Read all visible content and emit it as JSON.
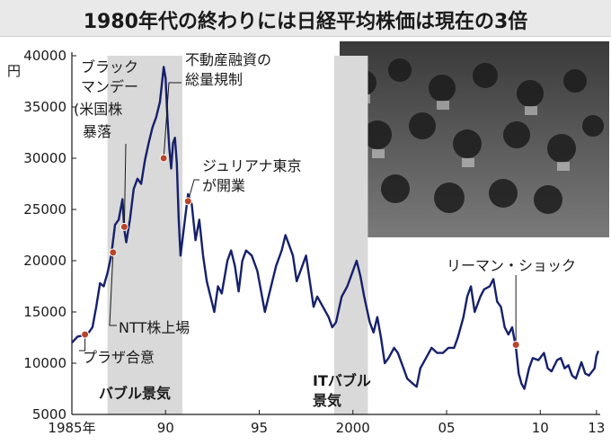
{
  "title": "1980年代の終わりには日経平均株価は現在の3倍",
  "chart_data": {
    "type": "line",
    "ylabel_unit": "円",
    "ylim": [
      5000,
      40000
    ],
    "yticks": [
      5000,
      10000,
      15000,
      20000,
      25000,
      30000,
      35000,
      40000
    ],
    "xlim": [
      1985.0,
      2013.2
    ],
    "xticks": [
      {
        "v": 1985,
        "label": "1985年"
      },
      {
        "v": 1990,
        "label": "90"
      },
      {
        "v": 1995,
        "label": "95"
      },
      {
        "v": 2000,
        "label": "2000"
      },
      {
        "v": 2005,
        "label": "05"
      },
      {
        "v": 2010,
        "label": "10"
      },
      {
        "v": 2013,
        "label": "13"
      }
    ],
    "series": [
      {
        "color": "#16206b",
        "points": [
          [
            1985.0,
            12000
          ],
          [
            1985.3,
            12600
          ],
          [
            1985.6,
            12700
          ],
          [
            1985.9,
            13000
          ],
          [
            1986.1,
            13500
          ],
          [
            1986.3,
            15500
          ],
          [
            1986.5,
            17800
          ],
          [
            1986.7,
            17500
          ],
          [
            1986.9,
            18800
          ],
          [
            1987.1,
            20500
          ],
          [
            1987.3,
            23500
          ],
          [
            1987.5,
            24000
          ],
          [
            1987.7,
            26000
          ],
          [
            1987.8,
            23000
          ],
          [
            1987.9,
            21800
          ],
          [
            1988.1,
            24000
          ],
          [
            1988.3,
            27000
          ],
          [
            1988.5,
            28000
          ],
          [
            1988.7,
            27500
          ],
          [
            1988.9,
            29800
          ],
          [
            1989.1,
            31500
          ],
          [
            1989.3,
            33000
          ],
          [
            1989.5,
            34000
          ],
          [
            1989.7,
            35500
          ],
          [
            1989.9,
            38900
          ],
          [
            1990.0,
            37800
          ],
          [
            1990.1,
            34000
          ],
          [
            1990.2,
            31000
          ],
          [
            1990.3,
            29000
          ],
          [
            1990.4,
            31500
          ],
          [
            1990.5,
            32000
          ],
          [
            1990.6,
            29500
          ],
          [
            1990.7,
            24000
          ],
          [
            1990.8,
            20500
          ],
          [
            1990.9,
            22000
          ],
          [
            1991.0,
            23500
          ],
          [
            1991.2,
            26500
          ],
          [
            1991.4,
            25500
          ],
          [
            1991.6,
            22000
          ],
          [
            1991.8,
            24000
          ],
          [
            1992.0,
            20500
          ],
          [
            1992.2,
            18000
          ],
          [
            1992.4,
            16500
          ],
          [
            1992.6,
            15000
          ],
          [
            1992.8,
            17500
          ],
          [
            1993.0,
            16800
          ],
          [
            1993.3,
            20000
          ],
          [
            1993.5,
            21000
          ],
          [
            1993.7,
            19500
          ],
          [
            1993.9,
            17000
          ],
          [
            1994.1,
            20000
          ],
          [
            1994.3,
            21000
          ],
          [
            1994.6,
            20500
          ],
          [
            1994.9,
            19000
          ],
          [
            1995.1,
            17000
          ],
          [
            1995.3,
            15000
          ],
          [
            1995.5,
            16500
          ],
          [
            1995.7,
            18000
          ],
          [
            1995.9,
            19500
          ],
          [
            1996.2,
            21000
          ],
          [
            1996.4,
            22500
          ],
          [
            1996.6,
            21500
          ],
          [
            1996.8,
            20500
          ],
          [
            1997.0,
            18000
          ],
          [
            1997.3,
            19500
          ],
          [
            1997.5,
            20500
          ],
          [
            1997.7,
            18000
          ],
          [
            1997.9,
            15500
          ],
          [
            1998.1,
            16500
          ],
          [
            1998.4,
            15500
          ],
          [
            1998.7,
            14500
          ],
          [
            1998.9,
            13500
          ],
          [
            1999.1,
            14000
          ],
          [
            1999.4,
            16500
          ],
          [
            1999.7,
            17500
          ],
          [
            1999.9,
            18500
          ],
          [
            2000.2,
            20000
          ],
          [
            2000.4,
            18500
          ],
          [
            2000.6,
            16500
          ],
          [
            2000.9,
            14000
          ],
          [
            2001.1,
            13000
          ],
          [
            2001.3,
            14500
          ],
          [
            2001.5,
            12500
          ],
          [
            2001.7,
            10000
          ],
          [
            2001.9,
            10500
          ],
          [
            2002.2,
            11500
          ],
          [
            2002.4,
            11000
          ],
          [
            2002.7,
            9500
          ],
          [
            2002.9,
            8500
          ],
          [
            2003.2,
            8000
          ],
          [
            2003.4,
            7700
          ],
          [
            2003.6,
            9500
          ],
          [
            2003.9,
            10500
          ],
          [
            2004.2,
            11500
          ],
          [
            2004.5,
            11000
          ],
          [
            2004.8,
            11000
          ],
          [
            2005.1,
            11500
          ],
          [
            2005.4,
            11500
          ],
          [
            2005.6,
            12500
          ],
          [
            2005.9,
            14500
          ],
          [
            2006.1,
            16500
          ],
          [
            2006.3,
            17500
          ],
          [
            2006.5,
            15000
          ],
          [
            2006.8,
            16500
          ],
          [
            2007.0,
            17200
          ],
          [
            2007.3,
            17500
          ],
          [
            2007.5,
            18200
          ],
          [
            2007.7,
            16000
          ],
          [
            2007.9,
            15500
          ],
          [
            2008.1,
            13500
          ],
          [
            2008.3,
            12800
          ],
          [
            2008.5,
            13500
          ],
          [
            2008.7,
            11500
          ],
          [
            2008.85,
            9000
          ],
          [
            2009.0,
            8000
          ],
          [
            2009.15,
            7500
          ],
          [
            2009.4,
            9500
          ],
          [
            2009.6,
            10500
          ],
          [
            2009.9,
            10300
          ],
          [
            2010.2,
            11000
          ],
          [
            2010.4,
            9500
          ],
          [
            2010.6,
            9200
          ],
          [
            2010.9,
            10300
          ],
          [
            2011.1,
            10500
          ],
          [
            2011.3,
            9500
          ],
          [
            2011.5,
            9800
          ],
          [
            2011.7,
            8800
          ],
          [
            2011.9,
            8500
          ],
          [
            2012.2,
            10100
          ],
          [
            2012.4,
            9000
          ],
          [
            2012.6,
            8800
          ],
          [
            2012.9,
            9500
          ],
          [
            2013.0,
            10700
          ],
          [
            2013.1,
            11200
          ]
        ]
      }
    ],
    "shaded_periods": [
      {
        "x0": 1986.9,
        "x1": 1990.9,
        "label": "バブル景気"
      },
      {
        "x0": 1999.0,
        "x1": 2000.8,
        "label": "ITバブル景気"
      }
    ],
    "events": [
      {
        "x": 1985.7,
        "y": 12800,
        "label": "プラザ合意"
      },
      {
        "x": 1987.2,
        "y": 20800,
        "label": "NTT株上場"
      },
      {
        "x": 1987.8,
        "y": 23300,
        "label": "ブラックマンデー(米国株暴落"
      },
      {
        "x": 1989.9,
        "y": 30000,
        "label": "不動産融資の総量規制"
      },
      {
        "x": 1991.2,
        "y": 25800,
        "label": "ジュリアナ東京が開業"
      },
      {
        "x": 2008.7,
        "y": 11800,
        "label": "リーマン・ショック"
      }
    ]
  },
  "annotations": {
    "plaza": "プラザ合意",
    "ntt": "NTT株上場",
    "blackmonday_1": "ブラック",
    "blackmonday_2": "マンデー",
    "blackmonday_3": "(米国株",
    "blackmonday_4": "暴落",
    "credit_1": "不動産融資の",
    "credit_2": "総量規制",
    "juliana_1": "ジュリアナ東京",
    "juliana_2": "が開業",
    "lehman": "リーマン・ショック",
    "bubble": "バブル景気",
    "itbubble_1": "ITバブル",
    "itbubble_2": "景気"
  },
  "photo": {
    "description_icon": "stock-exchange-traders-photo"
  }
}
